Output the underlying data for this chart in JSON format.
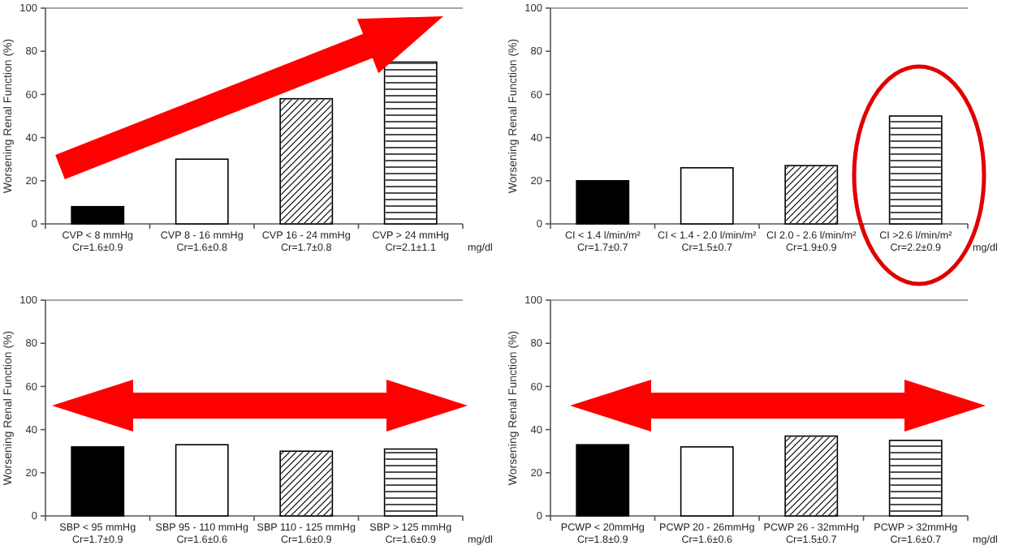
{
  "chart_data": [
    {
      "type": "bar",
      "ylabel": "Worsening Renal Function (%)",
      "categories": [
        "CVP < 8 mmHg\nCr=1.6±0.9",
        "CVP 8 - 16 mmHg\nCr=1.6±0.8",
        "CVP 16 - 24 mmHg\nCr=1.7±0.8",
        "CVP > 24 mmHg\nCr=2.1±1.1"
      ],
      "values": [
        8,
        30,
        58,
        75
      ],
      "colors": [
        "#000000",
        "#ffffff",
        "#ffffff",
        "#ffffff"
      ],
      "ylim": [
        0,
        100
      ],
      "yticks": [
        0,
        20,
        40,
        60,
        80,
        100
      ],
      "annotations": [
        "mg/dl"
      ]
    },
    {
      "type": "bar",
      "ylabel": "Worsening Renal Function (%)",
      "categories": [
        "CI < 1.4 l/min/m²\nCr=1.7±0.7",
        "CI < 1.4 - 2.0 l/min/m²\nCr=1.5±0.7",
        "CI 2.0 - 2.6 l/min/m²\nCr=1.9±0.9",
        "CI >2.6 l/min/m²\nCr=2.2±0.9"
      ],
      "values": [
        20,
        26,
        27,
        50
      ],
      "colors": [
        "#000000",
        "#ffffff",
        "#ffffff",
        "#ffffff"
      ],
      "ylim": [
        0,
        100
      ],
      "yticks": [
        0,
        20,
        40,
        60,
        80,
        100
      ],
      "annotations": [
        "mg/dl"
      ]
    },
    {
      "type": "bar",
      "ylabel": "Worsening Renal Function (%)",
      "categories": [
        "SBP < 95 mmHg\nCr=1.7±0.9",
        "SBP 95 - 110 mmHg\nCr=1.6±0.6",
        "SBP 110 - 125 mmHg\nCr=1.6±0.9",
        "SBP > 125 mmHg\nCr=1.6±0.9"
      ],
      "values": [
        32,
        33,
        30,
        31
      ],
      "colors": [
        "#000000",
        "#ffffff",
        "#ffffff",
        "#ffffff"
      ],
      "ylim": [
        0,
        100
      ],
      "yticks": [
        0,
        20,
        40,
        60,
        80,
        100
      ],
      "annotations": [
        "mg/dl"
      ]
    },
    {
      "type": "bar",
      "ylabel": "Worsening Renal Function (%)",
      "categories": [
        "PCWP < 20mmHg\nCr=1.8±0.9",
        "PCWP 20 - 26mmHg\nCr=1.6±0.6",
        "PCWP 26 - 32mmHg\nCr=1.5±0.7",
        "PCWP > 32mmHg\nCr=1.6±0.7"
      ],
      "values": [
        33,
        32,
        37,
        35
      ],
      "colors": [
        "#000000",
        "#ffffff",
        "#ffffff",
        "#ffffff"
      ],
      "ylim": [
        0,
        100
      ],
      "yticks": [
        0,
        20,
        40,
        60,
        80,
        100
      ],
      "annotations": [
        "mg/dl"
      ]
    }
  ]
}
